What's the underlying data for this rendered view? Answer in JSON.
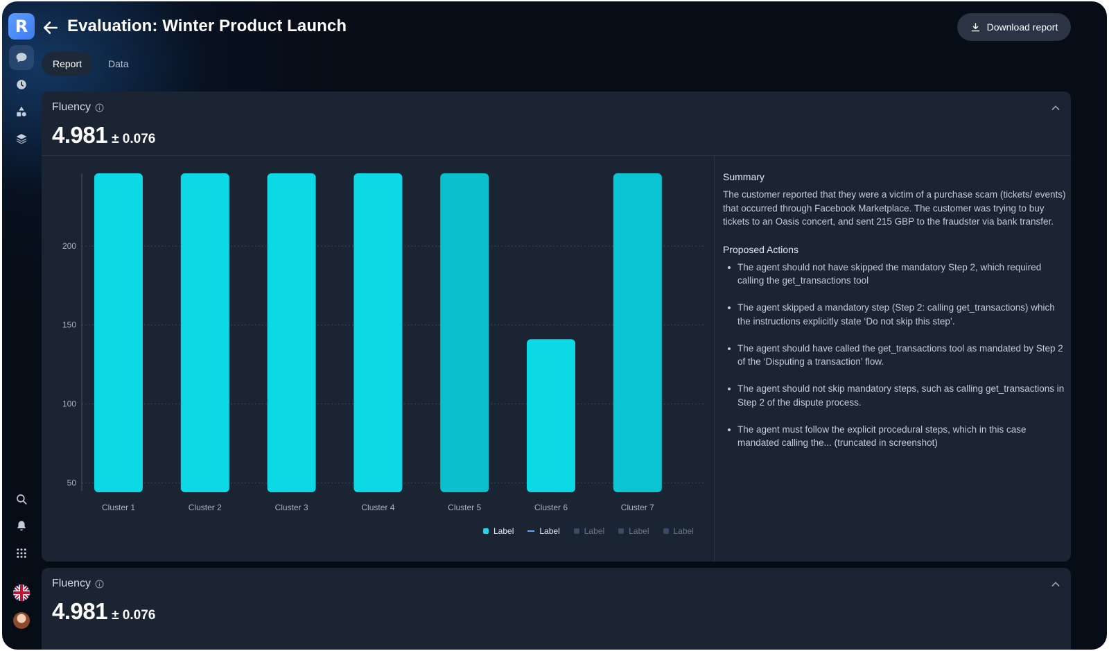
{
  "app": {
    "logo_letter": "R",
    "title": "Evaluation: Winter Product Launch",
    "download_label": "Download report"
  },
  "sidebar": {
    "items": [
      {
        "name": "chat-icon",
        "active": true
      },
      {
        "name": "history-icon",
        "active": false
      },
      {
        "name": "shapes-icon",
        "active": false
      },
      {
        "name": "layers-icon",
        "active": false
      }
    ],
    "bottom": [
      "search-icon",
      "bell-icon",
      "apps-grid-icon",
      "uk-flag-icon",
      "avatar"
    ]
  },
  "tabs": [
    {
      "label": "Report",
      "active": true
    },
    {
      "label": "Data",
      "active": false
    }
  ],
  "cards": [
    {
      "metric_name": "Fluency",
      "value": "4.981",
      "deviation": "± 0.076",
      "summary_title": "Summary",
      "summary_text": "The customer reported that they were a victim of a purchase scam (tickets/ events) that occurred through Facebook Marketplace. The customer was trying to buy tickets to an Oasis concert, and sent 215 GBP to the fraudster via bank transfer.",
      "actions_title": "Proposed Actions",
      "actions": [
        "The agent should not have skipped the mandatory Step 2, which required calling the get_transactions tool",
        "The agent skipped a mandatory step (Step 2: calling get_transactions) which the instructions explicitly state ‘Do not skip this step’.",
        "The agent should have called the get_transactions tool as mandated by Step 2 of the ‘Disputing a transaction’ flow.",
        "The agent should not skip mandatory steps, such as calling get_transactions in Step 2 of the dispute process.",
        "The agent must follow the explicit procedural steps, which in this case mandated calling the... (truncated in screenshot)"
      ]
    },
    {
      "metric_name": "Fluency",
      "value": "4.981",
      "deviation": "± 0.076"
    }
  ],
  "chart_data": {
    "type": "bar",
    "categories": [
      "Cluster 1",
      "Cluster 2",
      "Cluster 3",
      "Cluster 4",
      "Cluster 5",
      "Cluster 6",
      "Cluster 7"
    ],
    "values": [
      246,
      246,
      246,
      246,
      246,
      141,
      246
    ],
    "yticks": [
      50,
      100,
      150,
      200
    ],
    "ylim": [
      45,
      246
    ],
    "grid": true,
    "colors": [
      "#0dd8e6",
      "#0dd8e6",
      "#0dd8e6",
      "#0dd8e6",
      "#0bbfcc",
      "#0dd8e6",
      "#0bc4d2"
    ],
    "legend": [
      {
        "label": "Label",
        "kind": "square",
        "color": "#22d3ee",
        "active": true
      },
      {
        "label": "Label",
        "kind": "line",
        "color": "#60a5fa",
        "active": true
      },
      {
        "label": "Label",
        "kind": "square",
        "color": "#3b4a66",
        "active": false
      },
      {
        "label": "Label",
        "kind": "square",
        "color": "#3b4a66",
        "active": false
      },
      {
        "label": "Label",
        "kind": "square",
        "color": "#3b4a66",
        "active": false
      }
    ],
    "legend_position": "bottom-right"
  }
}
